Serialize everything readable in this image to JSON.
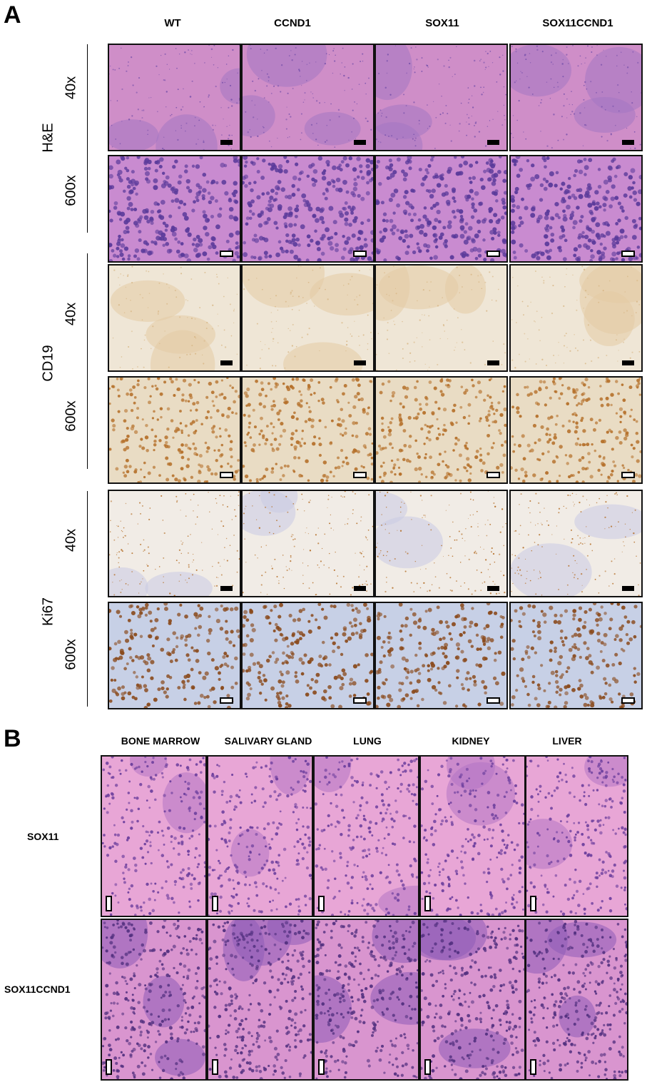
{
  "panel_a": {
    "letter": "A",
    "columns": [
      "WT",
      "CCND1",
      "SOX11",
      "SOX11CCND1"
    ],
    "groups": [
      {
        "stain": "H&E",
        "mags": [
          "40x",
          "600x"
        ]
      },
      {
        "stain": "CD19",
        "mags": [
          "40x",
          "600x"
        ]
      },
      {
        "stain": "Ki67",
        "mags": [
          "40x",
          "600x"
        ]
      }
    ]
  },
  "panel_b": {
    "letter": "B",
    "columns": [
      "BONE MARROW",
      "SALIVARY GLAND",
      "LUNG",
      "KIDNEY",
      "LIVER"
    ],
    "rows": [
      "SOX11",
      "SOX11CCND1"
    ]
  },
  "colors": {
    "he_background": "#cf8ec8",
    "he_nuclei": "#5a3a9a",
    "ihc_background": "#efe6d6",
    "dab_brown": "#b5702a",
    "hematoxylin_blue": "#8fa3cf"
  }
}
